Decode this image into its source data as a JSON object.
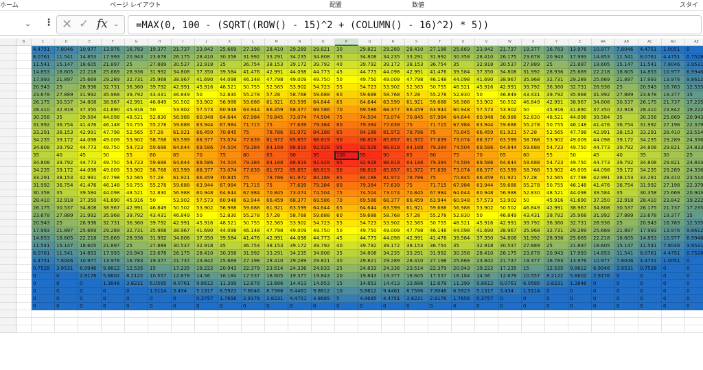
{
  "ribbon": {
    "labels": [
      "ホーム",
      "ページ レイアウト",
      "配置",
      "数値",
      "スタイル"
    ]
  },
  "formula_bar": {
    "formula": "=MAX(0, 100 - (SQRT((ROW() - 15)^2 + (COLUMN() - 16)^2) * 5))",
    "cancel_icon": "close-icon",
    "enter_icon": "check-icon",
    "function_icon": "fx-icon"
  },
  "sheet": {
    "columns": [
      "B",
      "C",
      "D",
      "E",
      "F",
      "G",
      "H",
      "I",
      "J",
      "K",
      "L",
      "M",
      "N",
      "O",
      "P",
      "Q",
      "R",
      "S",
      "T",
      "U",
      "V",
      "W",
      "X",
      "Y",
      "Z",
      "AA",
      "AB",
      "AC",
      "AD",
      "AE"
    ],
    "selected_column": "P",
    "active_row": 15,
    "first_row": 1,
    "visible_rows": 38,
    "data_rows": 35,
    "first_data_column_number": 3,
    "formula_center": {
      "row": 15,
      "column": 16
    },
    "formula_scale": 5,
    "formula_max": 100,
    "color_scale": {
      "min_color": "#1f6fc8",
      "mid_color": "#ffff00",
      "max_color": "#f8191a"
    }
  }
}
